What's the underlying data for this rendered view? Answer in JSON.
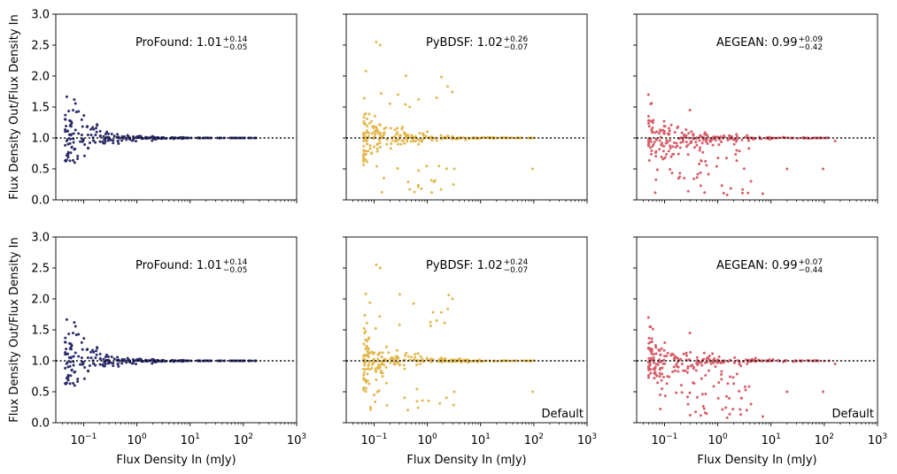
{
  "chart_data": {
    "type": "scatter",
    "shared": {
      "xlabel": "Flux Density In (mJy)",
      "ylabel": "Flux Density Out/Flux Density In",
      "xscale": "log",
      "xlim": [
        0.03,
        1000
      ],
      "ylim": [
        0,
        3
      ],
      "xticks": [
        0.1,
        1,
        10,
        100,
        1000
      ],
      "xtick_labels": [
        [
          "10",
          "−1"
        ],
        [
          "10",
          "0"
        ],
        [
          "10",
          "1"
        ],
        [
          "10",
          "2"
        ],
        [
          "10",
          "3"
        ]
      ],
      "yticks": [
        0,
        0.5,
        1,
        1.5,
        2,
        2.5,
        3
      ],
      "ytick_labels": [
        "0.0",
        "0.5",
        "1.0",
        "1.5",
        "2.0",
        "2.5",
        "3.0"
      ],
      "reference_line_y": 1.0
    },
    "panels": [
      {
        "id": "r1c1",
        "row": 0,
        "col": 0,
        "tool": "ProFound",
        "label_prefix": "ProFound: ",
        "value": "1.01",
        "upper": "+0.14",
        "lower": "−0.05",
        "color": "#2d2d6b",
        "seed": 11,
        "scatter": "profound",
        "note": ""
      },
      {
        "id": "r1c2",
        "row": 0,
        "col": 1,
        "tool": "PyBDSF",
        "label_prefix": "PyBDSF: ",
        "value": "1.02",
        "upper": "+0.26",
        "lower": "−0.07",
        "color": "#e3b84f",
        "seed": 23,
        "scatter": "pybdsf",
        "note": ""
      },
      {
        "id": "r1c3",
        "row": 0,
        "col": 2,
        "tool": "AEGEAN",
        "label_prefix": "AEGEAN: ",
        "value": "0.99",
        "upper": "+0.09",
        "lower": "−0.42",
        "color": "#d65f6a",
        "seed": 37,
        "scatter": "aegean",
        "note": ""
      },
      {
        "id": "r2c1",
        "row": 1,
        "col": 0,
        "tool": "ProFound",
        "label_prefix": "ProFound: ",
        "value": "1.01",
        "upper": "+0.14",
        "lower": "−0.05",
        "color": "#2d2d6b",
        "seed": 11,
        "scatter": "profound",
        "note": ""
      },
      {
        "id": "r2c2",
        "row": 1,
        "col": 1,
        "tool": "PyBDSF",
        "label_prefix": "PyBDSF: ",
        "value": "1.02",
        "upper": "+0.24",
        "lower": "−0.07",
        "color": "#e3b84f",
        "seed": 24,
        "scatter": "pybdsf",
        "note": "Default"
      },
      {
        "id": "r2c3",
        "row": 1,
        "col": 2,
        "tool": "AEGEAN",
        "label_prefix": "AEGEAN: ",
        "value": "0.99",
        "upper": "+0.07",
        "lower": "−0.44",
        "color": "#d65f6a",
        "seed": 38,
        "scatter": "aegean",
        "note": "Default"
      }
    ]
  }
}
